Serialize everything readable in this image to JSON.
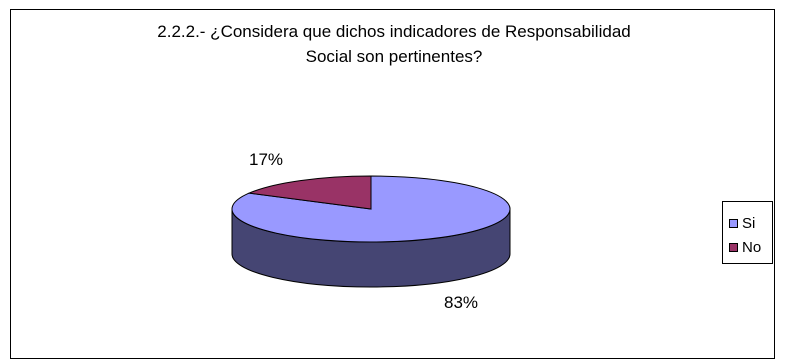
{
  "chart_data": {
    "type": "pie",
    "title_lines": [
      "2.2.2.- ¿Considera que dichos indicadores de Responsabilidad",
      "Social son pertinentes?"
    ],
    "categories": [
      "Si",
      "No"
    ],
    "values": [
      83,
      17
    ],
    "data_labels": [
      "83%",
      "17%"
    ],
    "legend": {
      "position": "right",
      "entries": [
        "Si",
        "No"
      ]
    },
    "colors": {
      "Si": "#9999FF",
      "No": "#993366"
    },
    "style": "3d"
  }
}
